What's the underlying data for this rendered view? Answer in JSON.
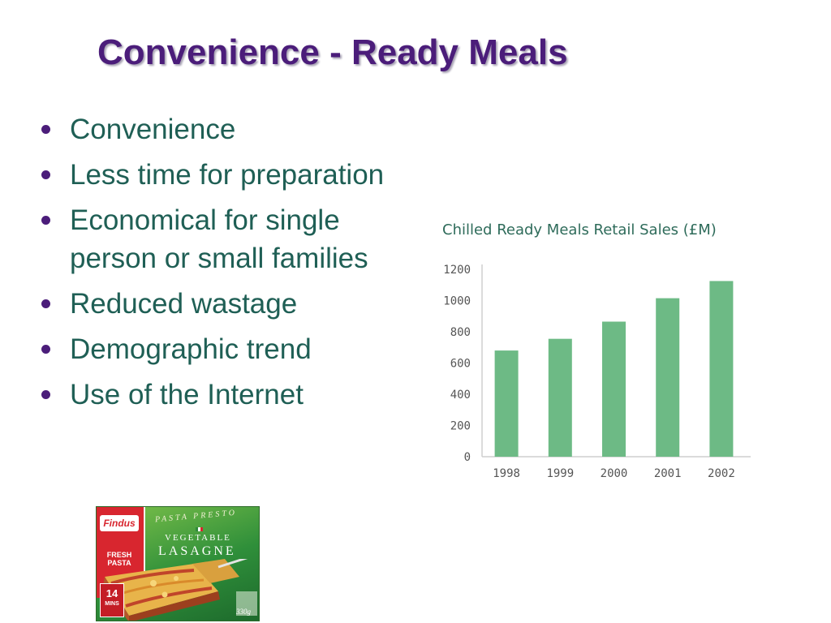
{
  "slide": {
    "title": "Convenience - Ready Meals",
    "bullets": [
      "Convenience",
      "Less time for preparation",
      "Economical for single person or small families",
      "Reduced wastage",
      "Demographic trend",
      "Use of the Internet"
    ]
  },
  "colors": {
    "title": "#4b1d7a",
    "bullet_text": "#1f5f55",
    "bar": "#6dba85",
    "chart_title": "#2e6b5a"
  },
  "chart_data": {
    "type": "bar",
    "title": "Chilled Ready Meals Retail Sales (£M)",
    "categories": [
      "1998",
      "1999",
      "2000",
      "2001",
      "2002"
    ],
    "values": [
      680,
      755,
      865,
      1015,
      1125
    ],
    "ylim": [
      0,
      1200
    ],
    "yticks": [
      0,
      200,
      400,
      600,
      800,
      1000,
      1200
    ],
    "grid": false,
    "xlabel": "",
    "ylabel": ""
  },
  "packshot": {
    "brand": "Findus",
    "range": "PASTA PRESTO",
    "product_line1": "VEGETABLE",
    "product_line2": "LASAGNE",
    "tag_line1": "FRESH",
    "tag_line2": "PASTA",
    "time_number": "14",
    "time_unit": "MINS",
    "weight": "330g"
  }
}
